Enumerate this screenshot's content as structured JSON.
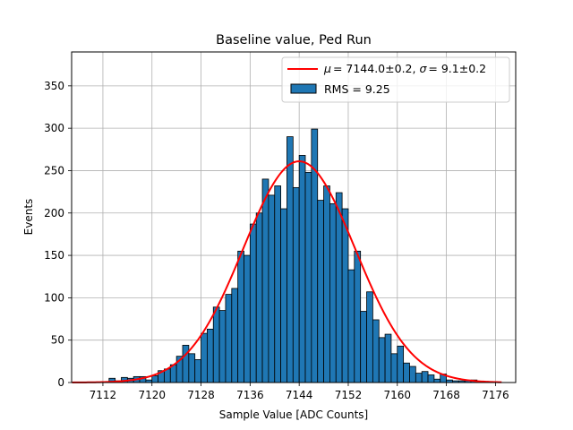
{
  "chart_data": {
    "type": "bar",
    "title": "Baseline value, Ped Run",
    "xlabel": "Sample Value [ADC Counts]",
    "ylabel": "Events",
    "xlim": [
      7106.9,
      7179.3
    ],
    "ylim": [
      0,
      390
    ],
    "xticks": [
      7112,
      7120,
      7128,
      7136,
      7144,
      7152,
      7160,
      7168,
      7176
    ],
    "yticks": [
      0,
      50,
      100,
      150,
      200,
      250,
      300,
      350
    ],
    "grid": true,
    "legend_position": "top-right",
    "bar_color": "#1f77b4",
    "fit_color": "#ff0000",
    "histogram": {
      "name": "RMS = 9.25",
      "bin_start": 7110,
      "bin_width": 1,
      "counts": [
        0,
        0,
        0,
        5,
        2,
        6,
        5,
        7,
        7,
        3,
        8,
        14,
        16,
        21,
        31,
        44,
        34,
        27,
        58,
        63,
        89,
        85,
        104,
        111,
        155,
        150,
        187,
        200,
        240,
        221,
        232,
        205,
        290,
        230,
        268,
        248,
        299,
        215,
        232,
        211,
        224,
        205,
        133,
        155,
        84,
        107,
        74,
        53,
        57,
        34,
        43,
        23,
        19,
        11,
        13,
        9,
        4,
        10,
        3,
        2,
        2,
        2,
        3,
        1,
        1,
        1
      ]
    },
    "fit": {
      "name": "$\\mu = 7144.0 \\pm 0.2$, $\\sigma = 9.1 \\pm 0.2$",
      "legend_mu_label": "μ",
      "legend_mu_value": "= 7144.0±0.2,",
      "legend_sigma_label": "σ",
      "legend_sigma_value": "= 9.1±0.2",
      "mu": 7144.0,
      "sigma": 9.1,
      "amplitude": 261
    }
  }
}
